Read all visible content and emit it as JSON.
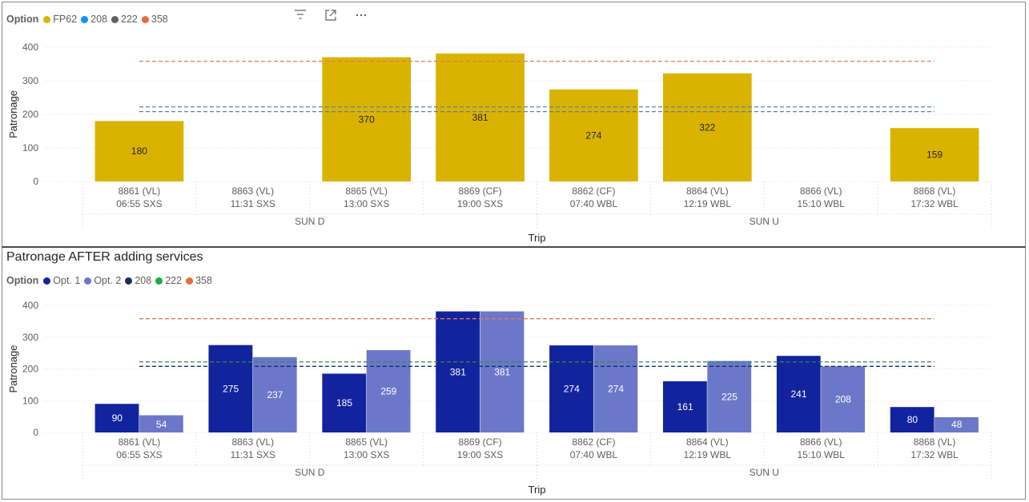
{
  "top_visual": {
    "legend_title": "Option",
    "legend": [
      {
        "label": "FP62",
        "color": "#D9B300"
      },
      {
        "label": "208",
        "color": "#118DFF"
      },
      {
        "label": "222",
        "color": "#5F5F5F"
      },
      {
        "label": "358",
        "color": "#E66C37"
      }
    ],
    "icons": [
      "filter-icon",
      "focus-mode-icon",
      "more-options-icon"
    ]
  },
  "bottom_visual": {
    "title": "Patronage AFTER adding services",
    "legend_title": "Option",
    "legend": [
      {
        "label": "Opt. 1",
        "color": "#12239E"
      },
      {
        "label": "Opt. 2",
        "color": "#6B78C9"
      },
      {
        "label": "208",
        "color": "#1A2A6C"
      },
      {
        "label": "222",
        "color": "#1AAB40"
      },
      {
        "label": "358",
        "color": "#E66C37"
      }
    ]
  },
  "chart_data": [
    {
      "type": "bar",
      "title": "",
      "xlabel": "Trip",
      "ylabel": "Patronage",
      "ylim": [
        0,
        400
      ],
      "yticks": [
        0,
        100,
        200,
        300,
        400
      ],
      "categories": [
        {
          "line1": "8861 (VL)",
          "line2": "06:55 SXS"
        },
        {
          "line1": "8863 (VL)",
          "line2": "11:31 SXS"
        },
        {
          "line1": "8865 (VL)",
          "line2": "13:00 SXS"
        },
        {
          "line1": "8869 (CF)",
          "line2": "19:00 SXS"
        },
        {
          "line1": "8862 (CF)",
          "line2": "07:40 WBL"
        },
        {
          "line1": "8864 (VL)",
          "line2": "12:19 WBL"
        },
        {
          "line1": "8866 (VL)",
          "line2": "15:10 WBL"
        },
        {
          "line1": "8868 (VL)",
          "line2": "17:32 WBL"
        }
      ],
      "groups": [
        {
          "label": "SUN D",
          "count": 4
        },
        {
          "label": "SUN U",
          "count": 4
        }
      ],
      "series": [
        {
          "name": "FP62",
          "color": "#D9B300",
          "label_color": "#252423",
          "values": [
            180,
            null,
            370,
            381,
            274,
            322,
            null,
            159
          ]
        }
      ],
      "reference_lines": [
        {
          "name": "208",
          "value": 208,
          "color": "#5B7DA8"
        },
        {
          "name": "222",
          "value": 222,
          "color": "#5A8A9A"
        },
        {
          "name": "358",
          "value": 358,
          "color": "#E07B5A"
        }
      ],
      "grid": true,
      "legend_position": "top-left"
    },
    {
      "type": "bar",
      "title": "Patronage AFTER adding services",
      "xlabel": "Trip",
      "ylabel": "Patronage",
      "ylim": [
        0,
        400
      ],
      "yticks": [
        0,
        100,
        200,
        300,
        400
      ],
      "categories": [
        {
          "line1": "8861 (VL)",
          "line2": "06:55 SXS"
        },
        {
          "line1": "8863 (VL)",
          "line2": "11:31 SXS"
        },
        {
          "line1": "8865 (VL)",
          "line2": "13:00 SXS"
        },
        {
          "line1": "8869 (CF)",
          "line2": "19:00 SXS"
        },
        {
          "line1": "8862 (CF)",
          "line2": "07:40 WBL"
        },
        {
          "line1": "8864 (VL)",
          "line2": "12:19 WBL"
        },
        {
          "line1": "8866 (VL)",
          "line2": "15:10 WBL"
        },
        {
          "line1": "8868 (VL)",
          "line2": "17:32 WBL"
        }
      ],
      "groups": [
        {
          "label": "SUN D",
          "count": 4
        },
        {
          "label": "SUN U",
          "count": 4
        }
      ],
      "series": [
        {
          "name": "Opt. 1",
          "color": "#12239E",
          "label_color": "#ffffff",
          "values": [
            90,
            275,
            185,
            381,
            274,
            161,
            241,
            80
          ]
        },
        {
          "name": "Opt. 2",
          "color": "#6B78C9",
          "label_color": "#ffffff",
          "values": [
            54,
            237,
            259,
            381,
            274,
            225,
            208,
            48
          ]
        }
      ],
      "reference_lines": [
        {
          "name": "208",
          "value": 208,
          "color": "#1A2A6C"
        },
        {
          "name": "222",
          "value": 222,
          "color": "#2E8B57"
        },
        {
          "name": "358",
          "value": 358,
          "color": "#E07B5A"
        }
      ],
      "grid": true,
      "legend_position": "top-left"
    }
  ]
}
